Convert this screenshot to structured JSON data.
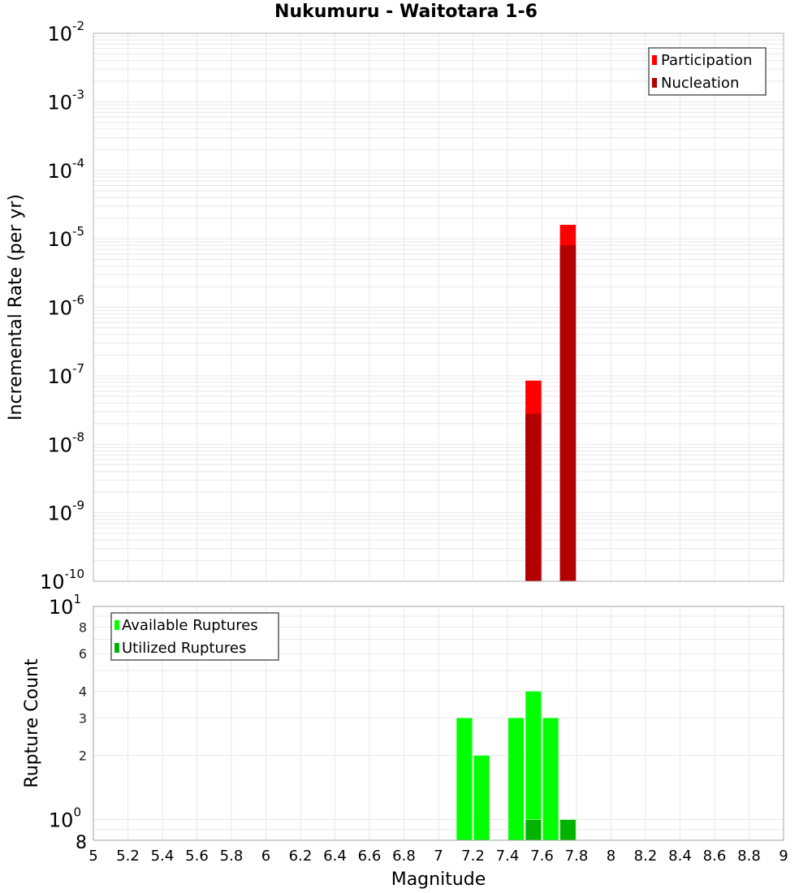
{
  "title": "Nukumuru - Waitotara 1-6",
  "chart_data": [
    {
      "type": "bar",
      "title": "Nukumuru - Waitotara 1-6",
      "xlabel": "Magnitude",
      "ylabel": "Incremental Rate (per yr)",
      "yscale": "log",
      "ylim": [
        1e-10,
        0.01
      ],
      "xlim": [
        5,
        9
      ],
      "y_ticks": [
        "10^-10",
        "10^-9",
        "10^-8",
        "10^-7",
        "10^-6",
        "10^-5",
        "10^-4",
        "10^-3",
        "10^-2"
      ],
      "legend": {
        "position": "top-right",
        "entries": [
          "Participation",
          "Nucleation"
        ]
      },
      "grid": true,
      "bin_width": 0.1,
      "x": [
        7.55,
        7.75
      ],
      "series": [
        {
          "name": "Participation",
          "color": "#ff0000",
          "values": [
            8.5e-08,
            1.6e-05
          ]
        },
        {
          "name": "Nucleation",
          "color": "#b30000",
          "values": [
            2.8e-08,
            8e-06
          ]
        }
      ]
    },
    {
      "type": "bar",
      "xlabel": "Magnitude",
      "ylabel": "Rupture Count",
      "yscale": "log",
      "ylim": [
        0.8,
        10
      ],
      "xlim": [
        5,
        9
      ],
      "x_ticks": [
        "5",
        "5.2",
        "5.4",
        "5.6",
        "5.8",
        "6",
        "6.2",
        "6.4",
        "6.6",
        "6.8",
        "7",
        "7.2",
        "7.4",
        "7.6",
        "7.8",
        "8",
        "8.2",
        "8.4",
        "8.6",
        "8.8",
        "9"
      ],
      "y_ticks": [
        "8",
        "10^0",
        "2",
        "3",
        "4",
        "6",
        "8",
        "10^1"
      ],
      "legend": {
        "position": "top-left",
        "entries": [
          "Available Ruptures",
          "Utilized Ruptures"
        ]
      },
      "grid": true,
      "bin_width": 0.1,
      "x": [
        7.15,
        7.25,
        7.45,
        7.55,
        7.65,
        7.75
      ],
      "series": [
        {
          "name": "Available Ruptures",
          "color": "#00ff00",
          "values": [
            3,
            2,
            3,
            4,
            3,
            0
          ]
        },
        {
          "name": "Utilized Ruptures",
          "color": "#00b300",
          "values": [
            0,
            0,
            0,
            1,
            0,
            1
          ]
        }
      ]
    }
  ]
}
